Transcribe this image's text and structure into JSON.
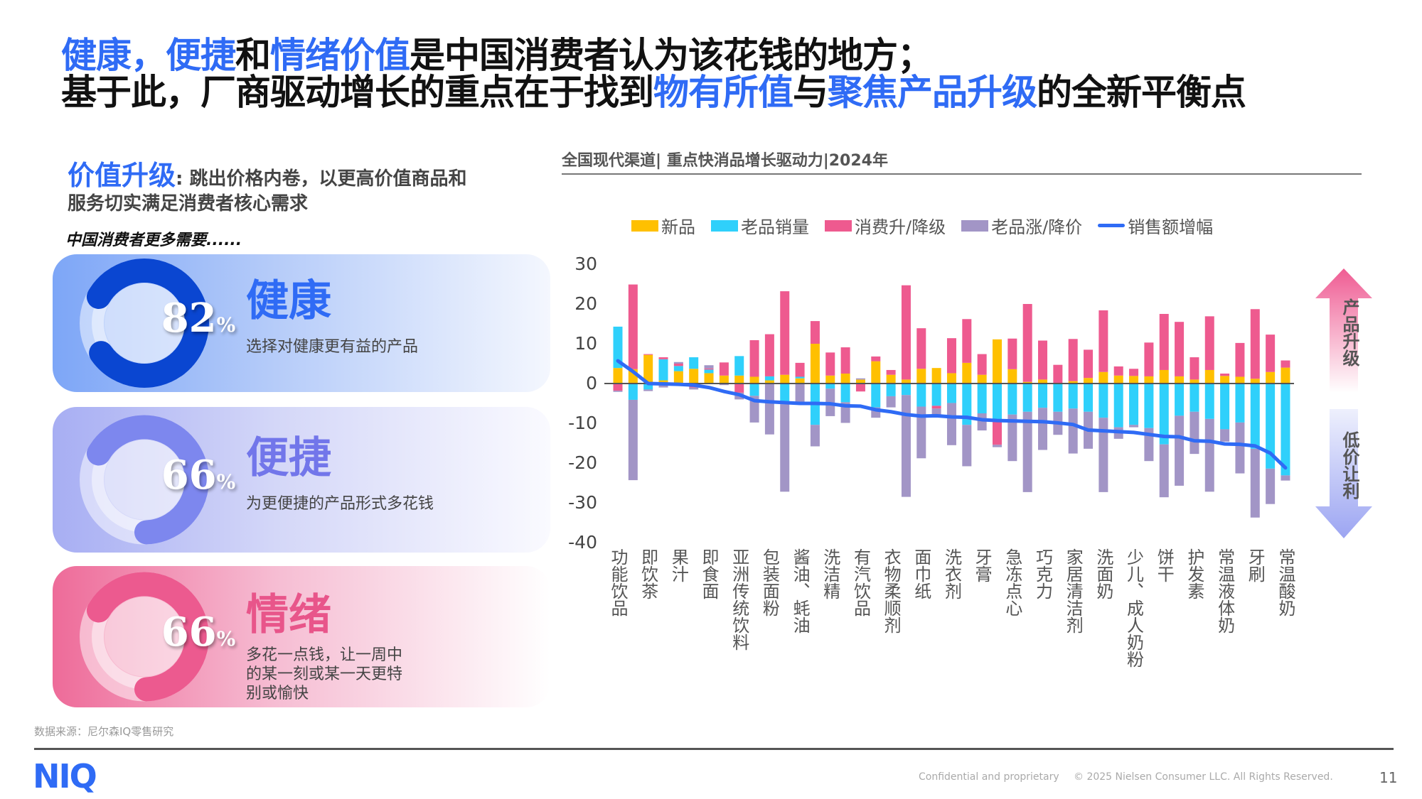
{
  "header": {
    "line1": [
      {
        "t": "健康，",
        "hl": true
      },
      {
        "t": "便捷",
        "hl": true
      },
      {
        "t": "和",
        "hl": false
      },
      {
        "t": "情绪价值",
        "hl": true
      },
      {
        "t": "是中国消费者认为该花钱的地方；",
        "hl": false
      }
    ],
    "line2": [
      {
        "t": "基于此，厂商驱动增长的重点在于找到",
        "hl": false
      },
      {
        "t": "物有所值",
        "hl": true
      },
      {
        "t": "与",
        "hl": false
      },
      {
        "t": "聚焦产品升级",
        "hl": true
      },
      {
        "t": "的全新平衡点",
        "hl": false
      }
    ]
  },
  "left": {
    "heading": "价值升级",
    "heading_rest": ": 跳出价格内卷，以更高价值商品和",
    "heading_line2": "服务切实满足消费者核心需求",
    "need": "中国消费者更多需要......",
    "cards": [
      {
        "pct": 82,
        "pct_text": "82",
        "unit": "%",
        "name": "健康",
        "desc": "选择对健康更有益的产品",
        "color": "#0a46d1",
        "name_color": "#2f6bf5"
      },
      {
        "pct": 66,
        "pct_text": "66",
        "unit": "%",
        "name": "便捷",
        "desc": "为更便捷的产品形式多花钱",
        "color": "#7d87ee",
        "name_color": "#7276ea"
      },
      {
        "pct": 66,
        "pct_text": "66",
        "unit": "%",
        "name": "情绪",
        "desc": "多花一点钱，让一周中的某一刻或某一天更特别或愉快",
        "color": "#ec5a8f",
        "name_color": "#e8558a"
      }
    ]
  },
  "chart_title": "全国现代渠道| 重点快消品增长驱动力|2024年",
  "side_arrows": {
    "up": "产品升级",
    "down": "低价让利"
  },
  "chart_data": {
    "type": "bar",
    "stacked": true,
    "ylim": [
      -40,
      30
    ],
    "yticks": [
      30,
      20,
      10,
      0,
      -10,
      -20,
      -30,
      -40
    ],
    "legend_position": "top",
    "categories": [
      "功能饮品",
      "",
      "即饮茶",
      "",
      "果汁",
      "",
      "即食面",
      "",
      "亚洲传统饮料",
      "",
      "包装面粉",
      "",
      "酱油、蚝油",
      "",
      "洗洁精",
      "",
      "有汽饮品",
      "",
      "衣物柔顺剂",
      "",
      "面巾纸",
      "",
      "洗衣剂",
      "",
      "牙膏",
      "",
      "急冻点心",
      "",
      "巧克力",
      "",
      "家居清洁剂",
      "",
      "洗面奶",
      "",
      "少儿、成人奶粉",
      "",
      "饼干",
      "",
      "护发素",
      "",
      "常温液体奶",
      "",
      "牙刷",
      "",
      "常温酸奶"
    ],
    "series": [
      {
        "name": "新品",
        "color": "#ffc000",
        "values": [
          3.9,
          3.6,
          7.2,
          0.8,
          3.1,
          3.7,
          2.6,
          2,
          2,
          1.7,
          0.8,
          2.2,
          1.3,
          10,
          2,
          2.5,
          1,
          5.6,
          2.2,
          1,
          3.7,
          3.9,
          2.6,
          5.2,
          2.2,
          11.1,
          3.6,
          0.4,
          1,
          0,
          0.6,
          1.4,
          2.9,
          2,
          1.9,
          1.8,
          3.4,
          1.8,
          1,
          3.4,
          1.9,
          1.7,
          1.2,
          2.9,
          4
        ]
      },
      {
        "name": "老品销量",
        "color": "#2fd0fb",
        "values": [
          10.4,
          -4.1,
          -1.5,
          5.3,
          1.3,
          2.9,
          0.9,
          0,
          4.9,
          -3.1,
          1,
          -5.2,
          0.4,
          -10.4,
          -1.3,
          -4.7,
          0,
          -6,
          -3.2,
          -2.9,
          -5.8,
          -5.6,
          -4.9,
          -10.4,
          -7.5,
          -9.6,
          -7.8,
          -7.1,
          -6.1,
          -7.1,
          -6.3,
          -7.1,
          -8.6,
          -11,
          -10.4,
          -11.2,
          -15.3,
          -8.1,
          -7.1,
          -8.9,
          -11.5,
          -9.8,
          -16.4,
          -21.4,
          -23.1
        ]
      },
      {
        "name": "消费升/降级",
        "color": "#ee5a8f",
        "values": [
          -1.8,
          21.3,
          0.2,
          0.5,
          0.6,
          -1,
          0.3,
          3.3,
          -2.3,
          9.2,
          10.6,
          21,
          3.5,
          5.7,
          5.8,
          6.6,
          -2,
          1.2,
          1.2,
          23.7,
          10.2,
          -0.7,
          8.8,
          11,
          5.2,
          -5.8,
          7.7,
          19.6,
          9.8,
          4.7,
          10.6,
          7.1,
          15.5,
          2.3,
          1.8,
          8.5,
          14.1,
          13.7,
          5.6,
          13.5,
          0.6,
          8.5,
          17.5,
          9.4,
          1.8
        ]
      },
      {
        "name": "老品涨/降价",
        "color": "#a295c6",
        "values": [
          -0.3,
          -20.2,
          -0.4,
          -1,
          0.4,
          -0.5,
          0.8,
          -0.4,
          -1.7,
          -6.7,
          -12.8,
          -22,
          -5.2,
          -5.4,
          -6.9,
          -5.2,
          0.3,
          -2.6,
          -2.8,
          -25.6,
          -13,
          -1.6,
          -10.6,
          -10.4,
          -4.3,
          -0.6,
          -11.7,
          -20.2,
          -10.6,
          -5.8,
          -11.3,
          -9.3,
          -18.7,
          -2.9,
          -0.6,
          -8.3,
          -13.3,
          -17.6,
          -10.6,
          -18.3,
          -3.1,
          -12.8,
          -17.3,
          -8.9,
          -1.3
        ]
      }
    ],
    "line": {
      "name": "销售额增幅",
      "color": "#2f6bf5",
      "values": [
        5.7,
        3,
        0,
        -0.1,
        -0.2,
        -0.4,
        -1,
        -2,
        -2.8,
        -4.3,
        -4.6,
        -4.8,
        -5,
        -5,
        -5.1,
        -5.6,
        -5.7,
        -6.6,
        -7.1,
        -7.8,
        -8.2,
        -8.1,
        -8.4,
        -8.5,
        -9.1,
        -9.3,
        -9.4,
        -9.5,
        -9.6,
        -9.9,
        -10.3,
        -11.7,
        -11.9,
        -12.1,
        -12.3,
        -12.8,
        -13.3,
        -13.4,
        -14.4,
        -14.5,
        -15.2,
        -15.3,
        -15.7,
        -17.5,
        -21.2
      ]
    }
  },
  "footer": {
    "source": "数据来源：尼尔森IQ零售研究",
    "logo": "NIQ",
    "confidential": "Confidential and proprietary",
    "copyright": "© 2025 Nielsen Consumer LLC. All Rights Reserved.",
    "page": "11"
  }
}
